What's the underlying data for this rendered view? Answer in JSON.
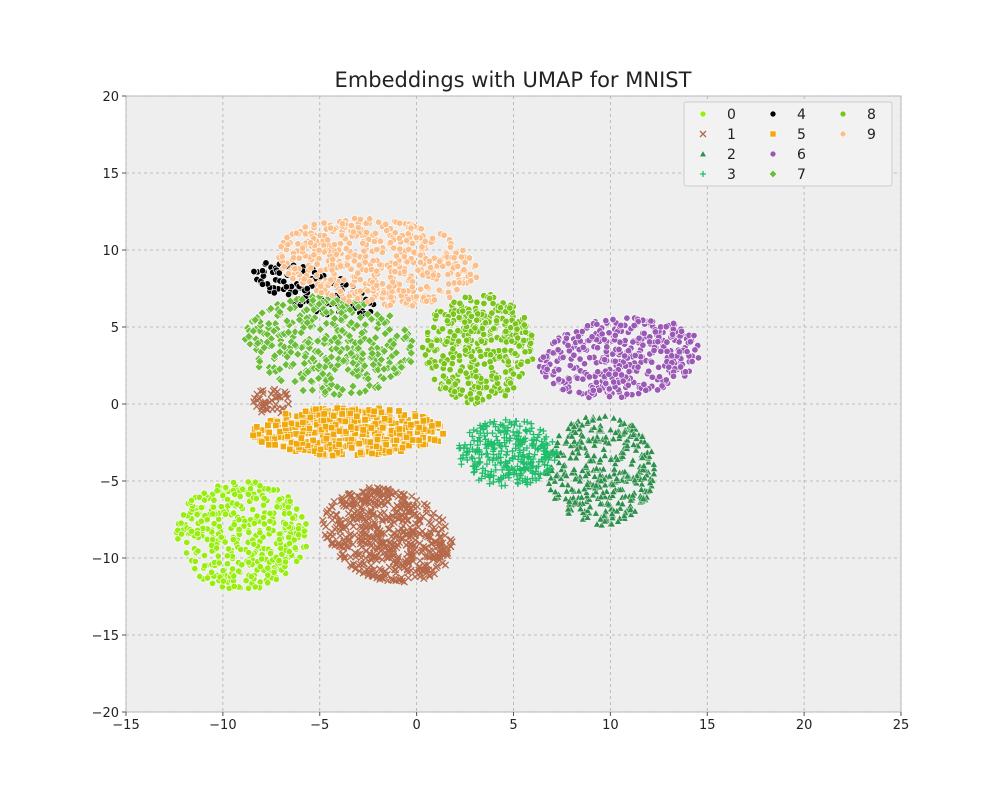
{
  "chart_data": {
    "type": "scatter",
    "title": "Embeddings with UMAP for MNIST",
    "xlabel": "",
    "ylabel": "",
    "xlim": [
      -15,
      25
    ],
    "ylim": [
      -20,
      20
    ],
    "xticks": [
      -15,
      -10,
      -5,
      0,
      5,
      10,
      15,
      20,
      25
    ],
    "yticks": [
      -20,
      -15,
      -10,
      -5,
      0,
      5,
      10,
      15,
      20
    ],
    "xtick_labels": [
      "−15",
      "−10",
      "−5",
      "0",
      "5",
      "10",
      "15",
      "20",
      "25"
    ],
    "ytick_labels": [
      "−20",
      "−15",
      "−10",
      "−5",
      "0",
      "5",
      "10",
      "15",
      "20"
    ],
    "grid": true,
    "legend": {
      "placement": "top-right",
      "columns": 3
    },
    "series": [
      {
        "name": "0",
        "color": "#99ee11",
        "marker": "circle",
        "clusters": [
          {
            "cx": -9.0,
            "cy": -8.5,
            "rx": 3.4,
            "ry": 3.6,
            "rot": 0,
            "n": 420
          }
        ]
      },
      {
        "name": "1",
        "color": "#b5694a",
        "marker": "x",
        "clusters": [
          {
            "cx": -1.5,
            "cy": -8.5,
            "rx": 3.6,
            "ry": 2.8,
            "rot": -35,
            "n": 560
          },
          {
            "cx": -7.5,
            "cy": 0.2,
            "rx": 1.0,
            "ry": 0.9,
            "rot": 0,
            "n": 40
          }
        ]
      },
      {
        "name": "2",
        "color": "#2f8f4c",
        "marker": "triangle",
        "clusters": [
          {
            "cx": 9.5,
            "cy": -4.3,
            "rx": 2.8,
            "ry": 3.6,
            "rot": 0,
            "n": 380
          }
        ]
      },
      {
        "name": "3",
        "color": "#1fbe6b",
        "marker": "plus",
        "clusters": [
          {
            "cx": 4.7,
            "cy": -3.2,
            "rx": 2.6,
            "ry": 2.2,
            "rot": 0,
            "n": 320
          }
        ]
      },
      {
        "name": "4",
        "color": "#000000",
        "marker": "circle",
        "clusters": [
          {
            "cx": -5.3,
            "cy": 7.4,
            "rx": 3.4,
            "ry": 1.3,
            "rot": -25,
            "n": 130
          }
        ]
      },
      {
        "name": "5",
        "color": "#f1a80d",
        "marker": "square",
        "clusters": [
          {
            "cx": -3.5,
            "cy": -1.8,
            "rx": 5.0,
            "ry": 1.6,
            "rot": 0,
            "n": 420
          }
        ]
      },
      {
        "name": "6",
        "color": "#9b59b6",
        "marker": "circle",
        "clusters": [
          {
            "cx": 10.5,
            "cy": 3.0,
            "rx": 4.2,
            "ry": 2.6,
            "rot": 10,
            "n": 420
          }
        ]
      },
      {
        "name": "7",
        "color": "#6cbd3a",
        "marker": "diamond",
        "clusters": [
          {
            "cx": -4.5,
            "cy": 3.8,
            "rx": 4.4,
            "ry": 3.2,
            "rot": -10,
            "n": 380
          }
        ]
      },
      {
        "name": "8",
        "color": "#7ac51b",
        "marker": "circle",
        "clusters": [
          {
            "cx": 3.2,
            "cy": 3.6,
            "rx": 2.9,
            "ry": 3.6,
            "rot": 0,
            "n": 380
          }
        ]
      },
      {
        "name": "9",
        "color": "#fbbf8c",
        "marker": "circle",
        "clusters": [
          {
            "cx": -2.0,
            "cy": 9.2,
            "rx": 5.2,
            "ry": 2.8,
            "rot": -8,
            "n": 520
          }
        ]
      }
    ]
  }
}
